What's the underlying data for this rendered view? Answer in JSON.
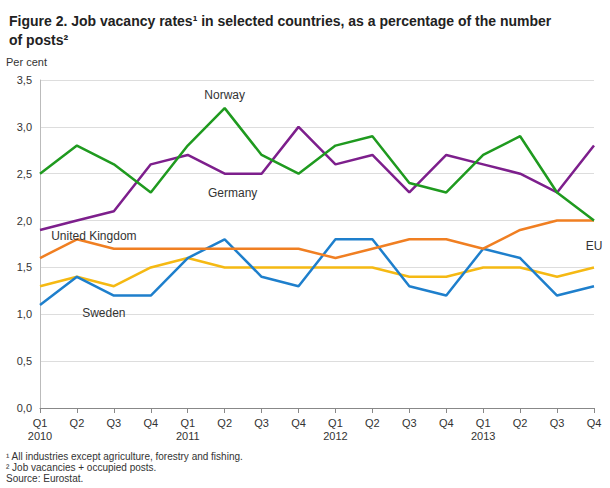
{
  "chart_data": {
    "type": "line",
    "title": "Figure 2. Job vacancy rates¹ in selected countries, as a percentage of the number of posts²",
    "y_label": "Per cent",
    "footnotes": [
      "¹ All industries except agriculture, forestry and fishing.",
      "² Job vacancies + occupied posts.",
      "Source: Eurostat."
    ],
    "categories": [
      "Q1\n2010",
      "Q2",
      "Q3",
      "Q4",
      "Q1\n2011",
      "Q2",
      "Q3",
      "Q4",
      "Q1\n2012",
      "Q2",
      "Q3",
      "Q4",
      "Q1\n2013",
      "Q2",
      "Q3",
      "Q4"
    ],
    "series": [
      {
        "name": "Norway",
        "color": "#1f9a1f",
        "values": [
          2.5,
          2.8,
          2.6,
          2.3,
          2.8,
          3.2,
          2.7,
          2.5,
          2.8,
          2.9,
          2.4,
          2.3,
          2.7,
          2.9,
          2.3,
          2.0
        ]
      },
      {
        "name": "Germany",
        "color": "#7d1f8c",
        "values": [
          1.9,
          2.0,
          2.1,
          2.6,
          2.7,
          2.5,
          2.5,
          3.0,
          2.6,
          2.7,
          2.3,
          2.7,
          2.6,
          2.5,
          2.3,
          2.8
        ]
      },
      {
        "name": "United Kingdom",
        "color": "#f07f22",
        "values": [
          1.6,
          1.8,
          1.7,
          1.7,
          1.7,
          1.7,
          1.7,
          1.7,
          1.6,
          1.7,
          1.8,
          1.8,
          1.7,
          1.9,
          2.0,
          2.0
        ]
      },
      {
        "name": "Sweden",
        "color": "#1e7fcc",
        "values": [
          1.1,
          1.4,
          1.2,
          1.2,
          1.6,
          1.8,
          1.4,
          1.3,
          1.8,
          1.8,
          1.3,
          1.2,
          1.7,
          1.6,
          1.2,
          1.3
        ]
      },
      {
        "name": "EU",
        "color": "#f5b913",
        "values": [
          1.3,
          1.4,
          1.3,
          1.5,
          1.6,
          1.5,
          1.5,
          1.5,
          1.5,
          1.5,
          1.4,
          1.4,
          1.5,
          1.5,
          1.4,
          1.5
        ]
      }
    ],
    "ylim": [
      0,
      3.5
    ],
    "yticks": [
      {
        "value": 0,
        "label": "0,0"
      },
      {
        "value": 0.5,
        "label": "0,5"
      },
      {
        "value": 1,
        "label": "1,0"
      },
      {
        "value": 1.5,
        "label": "1,5"
      },
      {
        "value": 2,
        "label": "2,0"
      },
      {
        "value": 2.5,
        "label": "2,5"
      },
      {
        "value": 3,
        "label": "3,0"
      },
      {
        "value": 3.5,
        "label": "3,5"
      }
    ],
    "grid": true
  }
}
